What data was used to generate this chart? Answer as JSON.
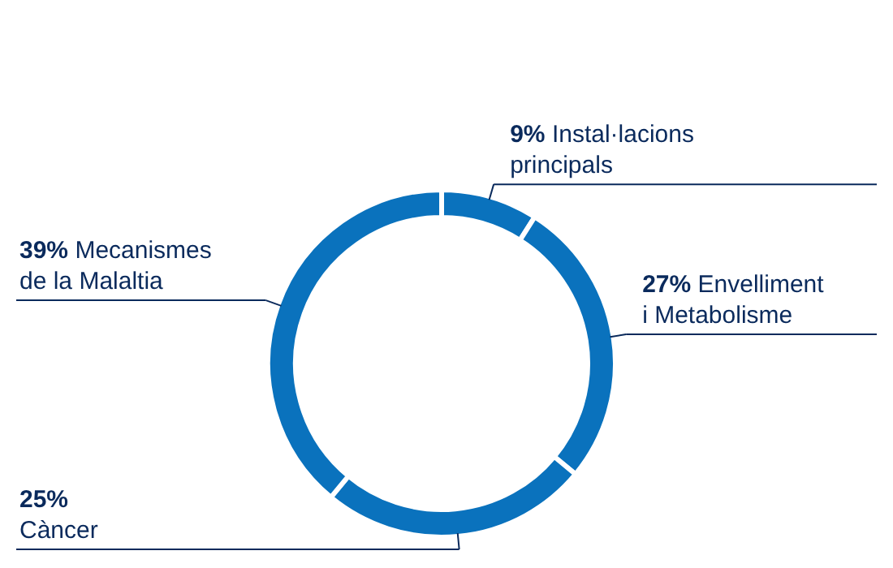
{
  "chart_data": {
    "type": "donut",
    "categories": [
      "Instal·lacions principals",
      "Envelliment i Metabolisme",
      "Càncer",
      "Mecanismes de la Malaltia"
    ],
    "values": [
      9,
      27,
      25,
      39
    ],
    "value_labels": [
      "9%",
      "27%",
      "25%",
      "39%"
    ],
    "colors": [
      "#0a72bd",
      "#0a72bd",
      "#0a72bd",
      "#0a72bd"
    ]
  }
}
